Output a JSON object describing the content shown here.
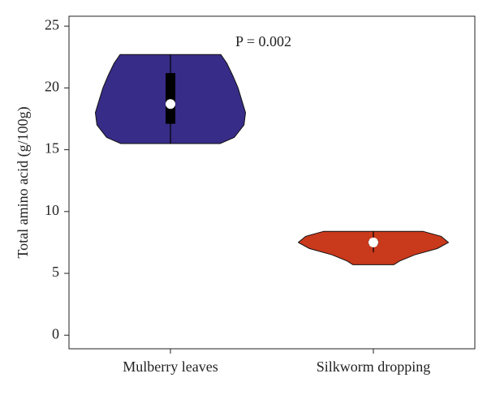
{
  "chart_data": {
    "type": "violin",
    "ylabel": "Total amino acid (g/100g)",
    "annotation": "P = 0.002",
    "categories": [
      "Mulberry leaves",
      "Silkworm dropping"
    ],
    "ylim": [
      -1.1,
      25.8
    ],
    "yticks": [
      0,
      5,
      10,
      15,
      20,
      25
    ],
    "series": [
      {
        "name": "Mulberry leaves",
        "color": "#372c87",
        "density_y": [
          15.5,
          16,
          17,
          18,
          19,
          20,
          21,
          22,
          22.7
        ],
        "density_width": [
          0.66,
          0.85,
          0.98,
          1.0,
          0.95,
          0.9,
          0.83,
          0.75,
          0.67
        ],
        "whisker": [
          15.5,
          22.7
        ],
        "box": [
          17.1,
          21.2
        ],
        "median": 18.7
      },
      {
        "name": "Silkworm dropping",
        "color": "#c9391c",
        "density_y": [
          5.7,
          6.0,
          6.5,
          7.0,
          7.5,
          8.0,
          8.4
        ],
        "density_width": [
          0.27,
          0.35,
          0.55,
          0.85,
          1.0,
          0.9,
          0.66
        ],
        "whisker": [
          6.7,
          8.4
        ],
        "box": [
          7.3,
          7.7
        ],
        "median": 7.5
      }
    ]
  }
}
